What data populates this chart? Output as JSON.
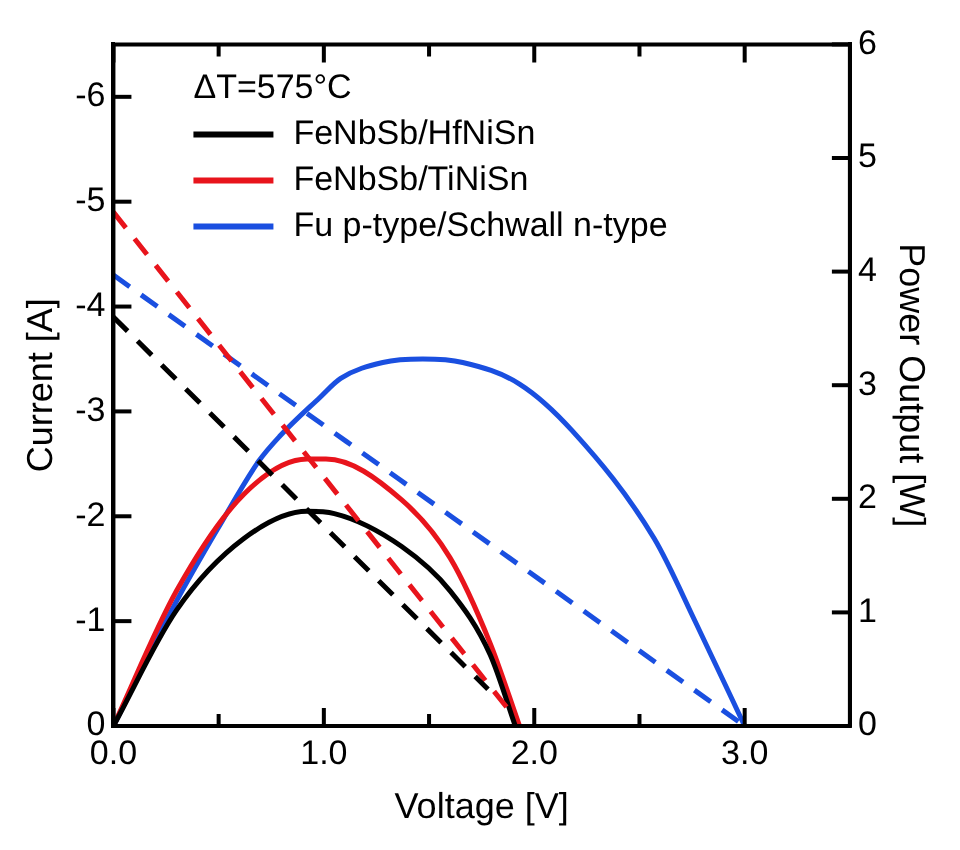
{
  "chart_data": {
    "type": "line",
    "xlabel": "Voltage [V]",
    "ylabel": "Current [A]",
    "y2label": "Power Output [W]",
    "legend_title": "ΔT=575°C",
    "legend": "top left",
    "marker": "none",
    "xlim": [
      0,
      3.5
    ],
    "xticks": [
      {
        "value": 0,
        "label": "0.0"
      },
      {
        "value": 0.5,
        "label": null
      },
      {
        "value": 1,
        "label": "1.0"
      },
      {
        "value": 1.5,
        "label": null
      },
      {
        "value": 2,
        "label": "2.0"
      },
      {
        "value": 2.5,
        "label": null
      },
      {
        "value": 3,
        "label": "3.0"
      }
    ],
    "ylim": [
      0,
      -6.5
    ],
    "yticks": [
      0,
      -1,
      -2,
      -3,
      -4,
      -5,
      -6
    ],
    "y2lim": [
      0,
      6
    ],
    "y2ticks": [
      0,
      1,
      2,
      3,
      4,
      5,
      6
    ],
    "series": [
      {
        "color": "#000000",
        "line_style": "dashed",
        "x": [
          0,
          1.78
        ],
        "values": [
          -3.9,
          -0.35
        ]
      },
      {
        "color": "#e8141c",
        "line_style": "dashed",
        "x": [
          0,
          1.9
        ],
        "values": [
          -4.9,
          -0.1
        ]
      },
      {
        "color": "#1a4fe0",
        "line_style": "dashed",
        "x": [
          0,
          3.0
        ],
        "values": [
          -4.3,
          0
        ]
      },
      {
        "name": "FeNbSb/HfNiSn",
        "color": "#000000",
        "axis": "y2",
        "line_style": "solid",
        "x": [
          0,
          0.3,
          0.62,
          0.92,
          1.05,
          1.37,
          1.6,
          1.79,
          1.91
        ],
        "values": [
          0,
          1.02,
          1.65,
          1.89,
          1.87,
          1.58,
          1.19,
          0.63,
          0
        ]
      },
      {
        "name": "FeNbSb/TiNiSn",
        "color": "#e8141c",
        "axis": "y2",
        "line_style": "solid",
        "x": [
          0,
          0.3,
          0.62,
          0.92,
          1.01,
          1.37,
          1.6,
          1.79,
          1.93
        ],
        "values": [
          0,
          1.19,
          2.04,
          2.35,
          2.35,
          1.99,
          1.48,
          0.73,
          0
        ]
      },
      {
        "name": "Fu p-type/Schwall n-type",
        "color": "#1a4fe0",
        "axis": "y2",
        "line_style": "solid",
        "x": [
          0,
          0.3,
          0.5,
          0.69,
          0.79,
          0.98,
          1.08,
          1.28,
          1.47,
          1.66,
          1.93,
          2.18,
          2.57,
          2.77,
          3.0
        ],
        "values": [
          0,
          1.1,
          1.75,
          2.33,
          2.55,
          2.89,
          3.06,
          3.2,
          3.23,
          3.2,
          3.01,
          2.6,
          1.65,
          0.9,
          0
        ]
      }
    ]
  }
}
